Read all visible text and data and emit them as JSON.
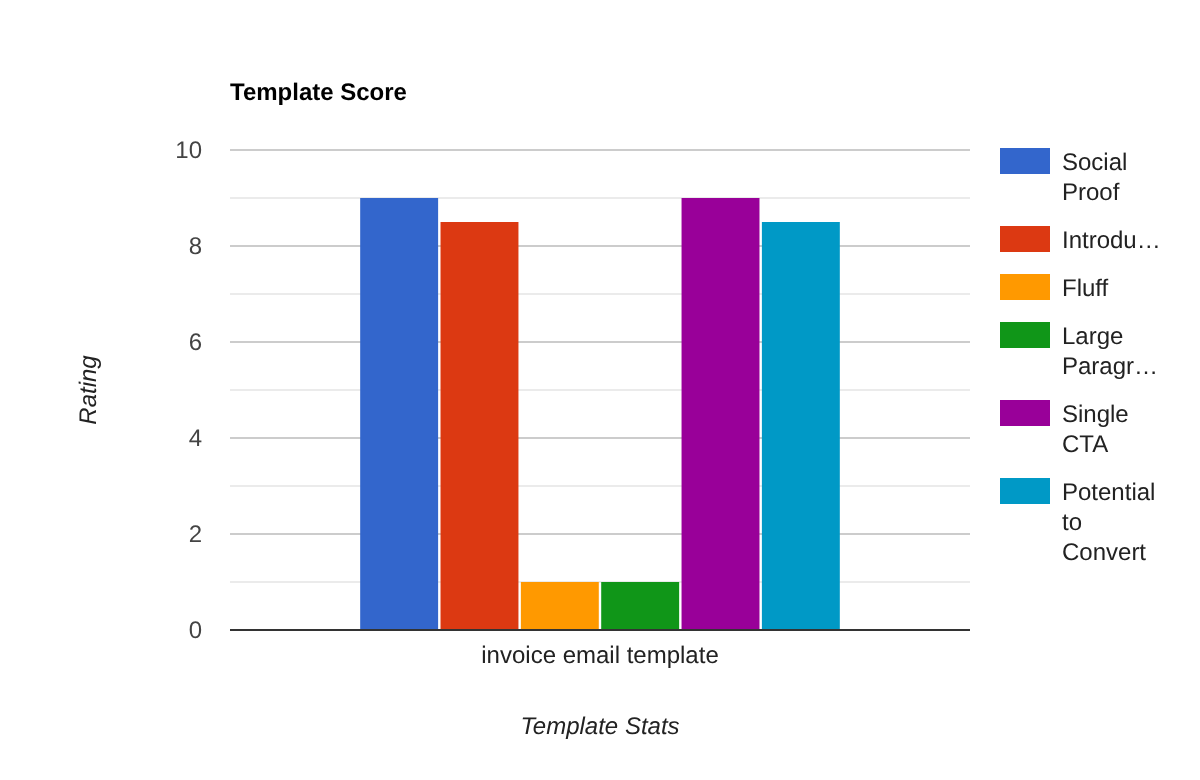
{
  "chart_data": {
    "type": "bar",
    "title": "Template Score",
    "xlabel": "Template Stats",
    "ylabel": "Rating",
    "categories": [
      "invoice email template"
    ],
    "series": [
      {
        "name": "Social Proof",
        "color": "#3366cc",
        "values": [
          9
        ]
      },
      {
        "name": "Introdu…",
        "color": "#dc3912",
        "values": [
          8.5
        ]
      },
      {
        "name": "Fluff",
        "color": "#ff9900",
        "values": [
          1
        ]
      },
      {
        "name": "Large Paragr…",
        "color": "#109618",
        "values": [
          1
        ]
      },
      {
        "name": "Single CTA",
        "color": "#990099",
        "values": [
          9
        ]
      },
      {
        "name": "Potential to Convert",
        "color": "#0099c6",
        "values": [
          8.5
        ]
      }
    ],
    "ylim": [
      0,
      10
    ],
    "yticks": [
      0,
      {
        "value": 1,
        "label": null
      },
      2,
      {
        "value": 3,
        "label": null
      },
      4,
      {
        "value": 5,
        "label": null
      },
      6,
      {
        "value": 7,
        "label": null
      },
      8,
      {
        "value": 9,
        "label": null
      },
      10
    ],
    "grid": true,
    "legend": "right"
  }
}
